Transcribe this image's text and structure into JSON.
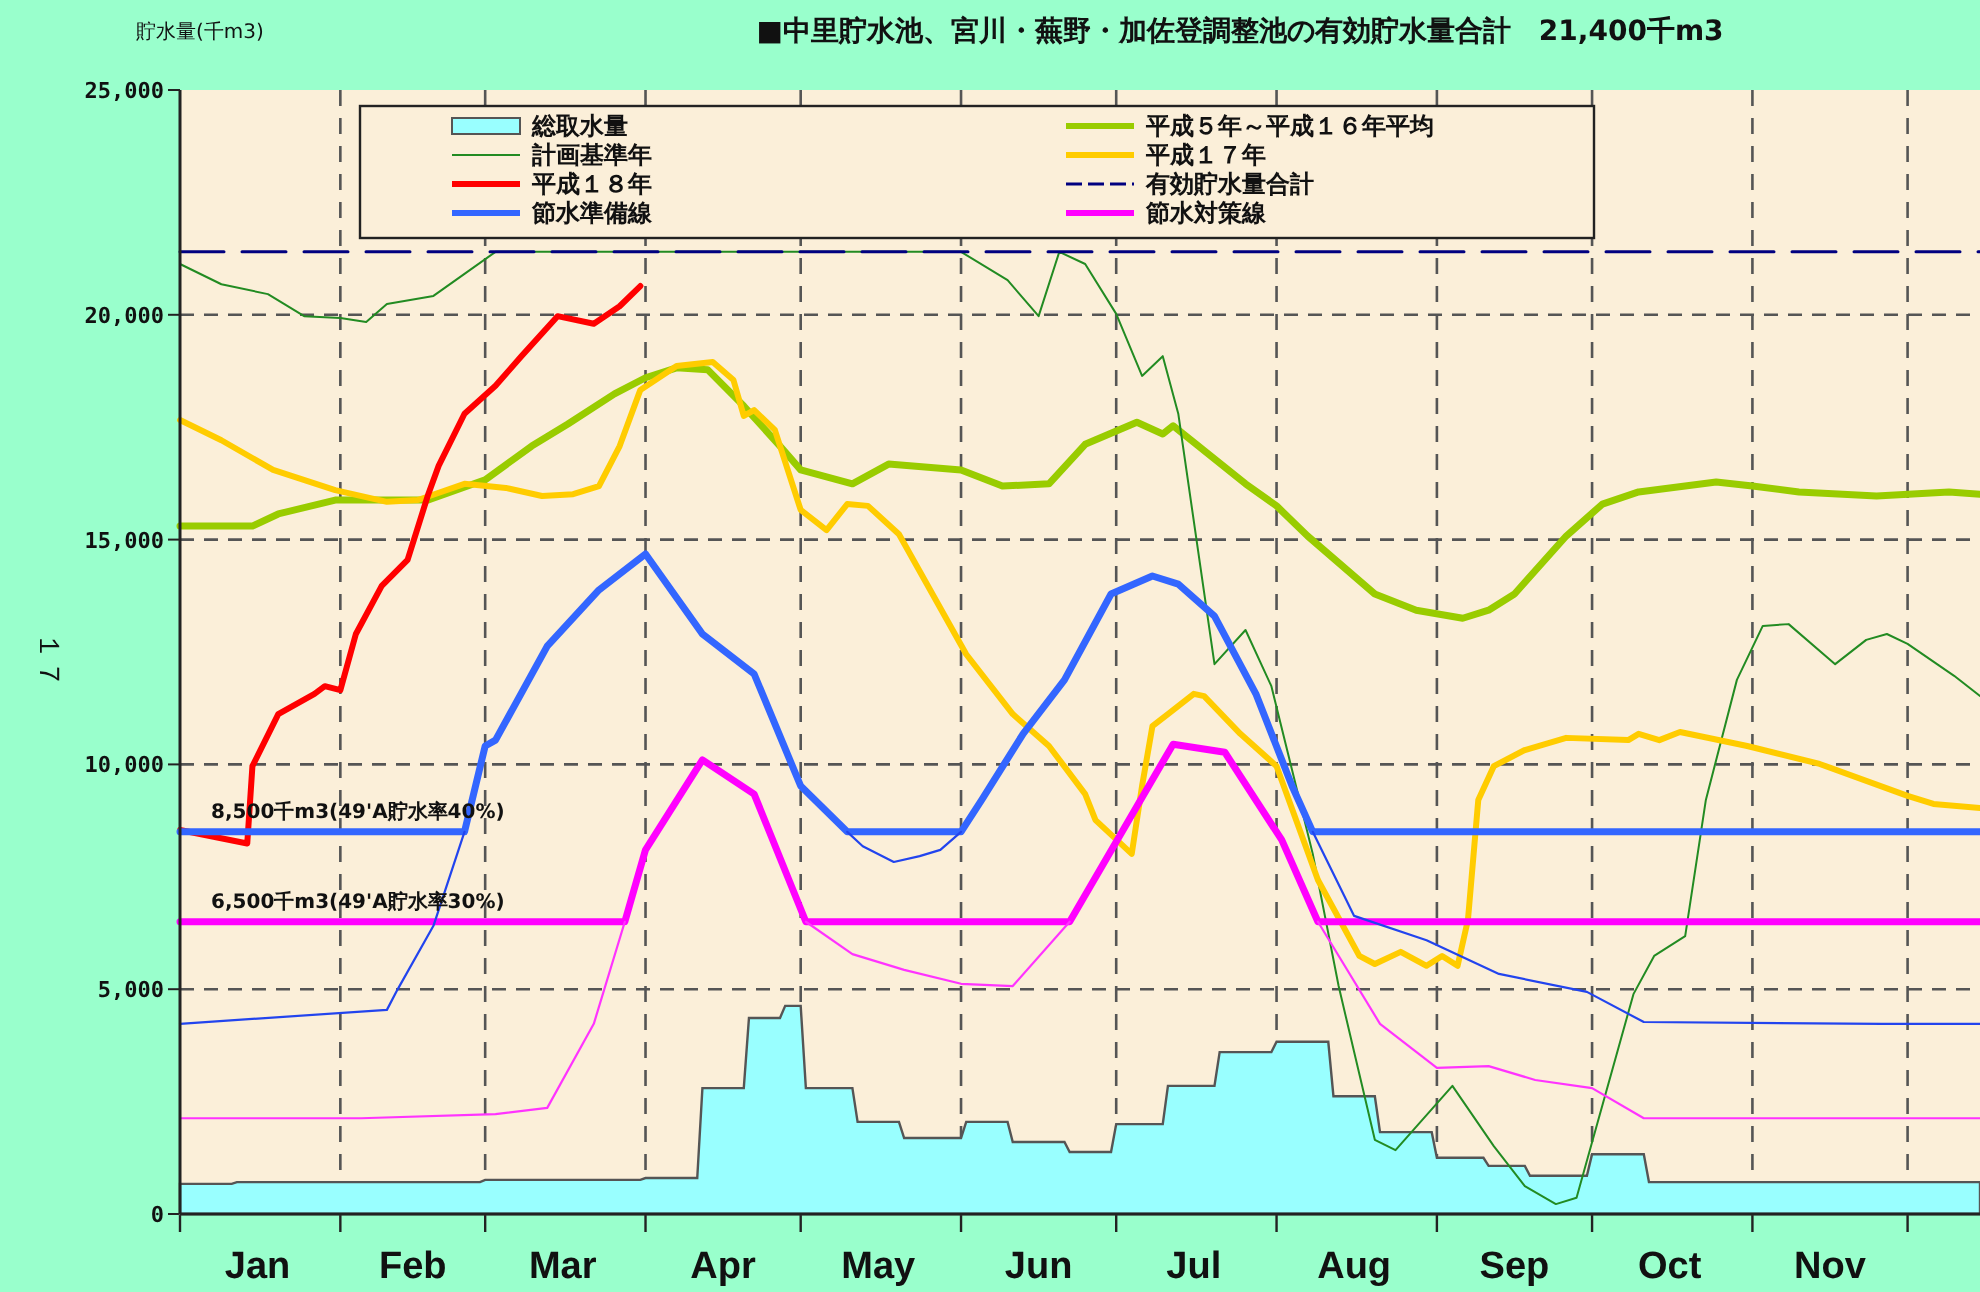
{
  "chart_data": {
    "type": "line",
    "title": "■中里貯水池、宮川・蕪野・加佐登調整池の有効貯水量合計　21,400千m3",
    "ylabel": "貯水量(千m3)",
    "xlim": [
      "--01-01",
      "--12-15"
    ],
    "ylim": [
      0,
      25000
    ],
    "xticks": [
      {
        "value": "--01-01",
        "label": null
      },
      {
        "value": "--01-16",
        "label": "Jan"
      },
      {
        "value": "--02-01",
        "label": null
      },
      {
        "value": "--02-15",
        "label": "Feb"
      },
      {
        "value": "--03-01",
        "label": null
      },
      {
        "value": "--03-16",
        "label": "Mar"
      },
      {
        "value": "--04-01",
        "label": null
      },
      {
        "value": "--04-16",
        "label": "Apr"
      },
      {
        "value": "--05-01",
        "label": null
      },
      {
        "value": "--05-16",
        "label": "May"
      },
      {
        "value": "--06-01",
        "label": null
      },
      {
        "value": "--06-16",
        "label": "Jun"
      },
      {
        "value": "--07-01",
        "label": null
      },
      {
        "value": "--07-16",
        "label": "Jul"
      },
      {
        "value": "--08-01",
        "label": null
      },
      {
        "value": "--08-16",
        "label": "Aug"
      },
      {
        "value": "--09-01",
        "label": null
      },
      {
        "value": "--09-16",
        "label": "Sep"
      },
      {
        "value": "--10-01",
        "label": null
      },
      {
        "value": "--10-16",
        "label": "Oct"
      },
      {
        "value": "--11-01",
        "label": null
      },
      {
        "value": "--11-16",
        "label": "Nov"
      },
      {
        "value": "--12-01",
        "label": null
      }
    ],
    "yticks": [
      {
        "value": 0,
        "label": "0"
      },
      {
        "value": 5000,
        "label": "5,000"
      },
      {
        "value": 10000,
        "label": "10,000"
      },
      {
        "value": 15000,
        "label": "15,000"
      },
      {
        "value": 20000,
        "label": "20,000"
      },
      {
        "value": 25000,
        "label": "25,000"
      }
    ],
    "grid": true,
    "legend": "top",
    "series": [
      {
        "name": "総取水量",
        "type": "area",
        "color": "#99ffff",
        "x": [
          "--01-01",
          "--01-11",
          "--01-12",
          "--02-28",
          "--03-01",
          "--03-31",
          "--04-01",
          "--04-11",
          "--04-12",
          "--04-20",
          "--04-21",
          "--04-27",
          "--04-28",
          "--05-01",
          "--05-02",
          "--05-11",
          "--05-12",
          "--05-20",
          "--05-21",
          "--06-01",
          "--06-02",
          "--06-10",
          "--06-11",
          "--06-21",
          "--06-22",
          "--06-30",
          "--07-01",
          "--07-10",
          "--07-11",
          "--07-20",
          "--07-21",
          "--07-31",
          "--08-01",
          "--08-11",
          "--08-12",
          "--08-20",
          "--08-21",
          "--08-31",
          "--09-01",
          "--09-10",
          "--09-11",
          "--09-18",
          "--09-19",
          "--09-30",
          "--10-01",
          "--10-11",
          "--10-12",
          "--12-15"
        ],
        "values": [
          670,
          670,
          710,
          710,
          760,
          760,
          800,
          800,
          2800,
          2800,
          4360,
          4360,
          4630,
          4630,
          2800,
          2800,
          2050,
          2050,
          1690,
          1690,
          2050,
          2050,
          1600,
          1600,
          1380,
          1380,
          2000,
          2000,
          2850,
          2850,
          3600,
          3600,
          3830,
          3830,
          2620,
          2620,
          1820,
          1820,
          1250,
          1250,
          1070,
          1070,
          850,
          850,
          1330,
          1330,
          710,
          710
        ]
      },
      {
        "name": "平成５年～平成１６年平均",
        "color": "#99cc00",
        "x": [
          "--01-01",
          "--01-15",
          "--01-20",
          "--01-31",
          "--02-18",
          "--03-01",
          "--03-10",
          "--03-17",
          "--03-26",
          "--04-01",
          "--04-07",
          "--04-13",
          "--04-20",
          "--04-27",
          "--05-01",
          "--05-11",
          "--05-18",
          "--06-01",
          "--06-09",
          "--06-18",
          "--06-25",
          "--07-05",
          "--07-10",
          "--07-12",
          "--07-26",
          "--08-01",
          "--08-07",
          "--08-20",
          "--08-28",
          "--09-06",
          "--09-11",
          "--09-16",
          "--09-26",
          "--10-03",
          "--10-10",
          "--10-25",
          "--11-01",
          "--11-10",
          "--11-25",
          "--12-09",
          "--12-15"
        ],
        "values": [
          15300,
          15300,
          15570,
          15880,
          15880,
          16330,
          17080,
          17570,
          18240,
          18600,
          18820,
          18780,
          17970,
          17080,
          16550,
          16240,
          16680,
          16550,
          16190,
          16240,
          17120,
          17610,
          17350,
          17530,
          16240,
          15750,
          15080,
          13790,
          13430,
          13250,
          13430,
          13790,
          15080,
          15790,
          16060,
          16280,
          16190,
          16060,
          15970,
          16060,
          16010
        ]
      },
      {
        "name": "計画基準年",
        "color": "#228b22",
        "x": [
          "--01-01",
          "--01-09",
          "--01-18",
          "--01-25",
          "--02-01",
          "--02-06",
          "--02-10",
          "--02-19",
          "--02-25",
          "--03-03",
          "--06-01",
          "--06-10",
          "--06-16",
          "--06-20",
          "--06-25",
          "--07-01",
          "--07-06",
          "--07-10",
          "--07-13",
          "--07-20",
          "--07-26",
          "--07-31",
          "--08-08",
          "--08-13",
          "--08-20",
          "--08-24",
          "--09-04",
          "--09-12",
          "--09-18",
          "--09-24",
          "--09-28",
          "--10-09",
          "--10-13",
          "--10-19",
          "--10-23",
          "--10-29",
          "--11-03",
          "--11-08",
          "--11-17",
          "--11-23",
          "--11-27",
          "--12-01",
          "--12-10",
          "--12-15"
        ],
        "values": [
          21130,
          20680,
          20460,
          19970,
          19930,
          19840,
          20240,
          20420,
          20910,
          21400,
          21400,
          20770,
          19970,
          21400,
          21130,
          20020,
          18640,
          19080,
          17800,
          12230,
          12990,
          11740,
          8010,
          5070,
          1650,
          1420,
          2850,
          1510,
          620,
          220,
          360,
          4890,
          5740,
          6180,
          9210,
          11880,
          13080,
          13120,
          12230,
          12770,
          12900,
          12680,
          11970,
          11520
        ]
      },
      {
        "name": "平成１７年",
        "color": "#ffcc00",
        "x": [
          "--01-01",
          "--01-09",
          "--01-19",
          "--01-31",
          "--02-10",
          "--02-16",
          "--02-25",
          "--03-05",
          "--03-12",
          "--03-18",
          "--03-23",
          "--03-27",
          "--03-31",
          "--04-07",
          "--04-14",
          "--04-18",
          "--04-20",
          "--04-22",
          "--04-26",
          "--05-01",
          "--05-06",
          "--05-10",
          "--05-14",
          "--05-20",
          "--06-02",
          "--06-11",
          "--06-18",
          "--06-25",
          "--06-27",
          "--07-04",
          "--07-06",
          "--07-08",
          "--07-11",
          "--07-16",
          "--07-18",
          "--07-25",
          "--08-01",
          "--08-09",
          "--08-17",
          "--08-20",
          "--08-25",
          "--08-30",
          "--09-02",
          "--09-05",
          "--09-07",
          "--09-09",
          "--09-12",
          "--09-18",
          "--09-26",
          "--10-08",
          "--10-10",
          "--10-14",
          "--10-18",
          "--10-31",
          "--11-14",
          "--12-01",
          "--12-06",
          "--12-15"
        ],
        "values": [
          17660,
          17210,
          16550,
          16100,
          15840,
          15880,
          16240,
          16150,
          15970,
          16010,
          16190,
          17080,
          18330,
          18860,
          18950,
          18550,
          17750,
          17880,
          17440,
          15660,
          15210,
          15790,
          15750,
          15120,
          12450,
          11120,
          10410,
          9340,
          8760,
          8010,
          9520,
          10850,
          11120,
          11570,
          11520,
          10680,
          9960,
          7430,
          5740,
          5560,
          5830,
          5520,
          5740,
          5520,
          6540,
          9210,
          9960,
          10320,
          10590,
          10540,
          10680,
          10540,
          10720,
          10410,
          10010,
          9300,
          9120,
          9030
        ]
      },
      {
        "name": "平成１８年",
        "color": "#ff0000",
        "x": [
          "--01-01",
          "--01-14",
          "--01-15",
          "--01-20",
          "--01-27",
          "--01-29",
          "--02-01",
          "--02-04",
          "--02-09",
          "--02-14",
          "--02-18",
          "--02-20",
          "--02-25",
          "--03-03",
          "--03-08",
          "--03-15",
          "--03-22",
          "--03-27",
          "--03-31"
        ],
        "values": [
          8540,
          8240,
          9960,
          11120,
          11570,
          11740,
          11650,
          12900,
          13970,
          14550,
          16010,
          16640,
          17800,
          18420,
          19080,
          19970,
          19800,
          20190,
          20640
        ]
      },
      {
        "name": "有効貯水量合計",
        "color": "#000080",
        "line_style": "dashed",
        "x": [
          "--01-01",
          "--12-15"
        ],
        "values": [
          21400,
          21400
        ]
      },
      {
        "name": "節水準備線",
        "color": "#3366ff",
        "x": [
          "--01-01",
          "--02-25",
          "--03-01",
          "--03-03",
          "--03-13",
          "--03-23",
          "--04-01",
          "--04-12",
          "--04-22",
          "--05-01",
          "--05-10",
          "--06-01",
          "--06-05",
          "--06-13",
          "--06-21",
          "--06-30",
          "--07-08",
          "--07-13",
          "--07-20",
          "--07-28",
          "--08-04",
          "--08-08",
          "--12-15"
        ],
        "values": [
          8500,
          8500,
          10410,
          10540,
          12630,
          13880,
          14680,
          12900,
          12010,
          9520,
          8500,
          8500,
          9210,
          10680,
          11880,
          13790,
          14190,
          14010,
          13300,
          11570,
          9520,
          8500,
          8500
        ]
      },
      {
        "name": "節水対策線",
        "color": "#ff00ff",
        "x": [
          "--01-01",
          "--03-28",
          "--04-01",
          "--04-12",
          "--04-22",
          "--05-02",
          "--06-22",
          "--07-12",
          "--07-22",
          "--08-02",
          "--08-09",
          "--12-15"
        ],
        "values": [
          6500,
          6500,
          8100,
          10100,
          9340,
          6500,
          6500,
          10450,
          10270,
          8320,
          6500,
          6500
        ]
      },
      {
        "color": "#2244ee",
        "x": [
          "--01-01",
          "--02-10",
          "--02-12",
          "--02-19",
          "--02-25"
        ],
        "values": [
          4230,
          4540,
          4980,
          6410,
          8500
        ]
      },
      {
        "color": "#2244ee",
        "x": [
          "--05-10",
          "--05-13",
          "--05-19",
          "--05-24",
          "--05-28",
          "--06-01"
        ],
        "values": [
          8500,
          8180,
          7830,
          7960,
          8100,
          8500
        ]
      },
      {
        "color": "#2244ee",
        "x": [
          "--08-08",
          "--08-16",
          "--08-30",
          "--09-13",
          "--09-30",
          "--10-11",
          "--11-26",
          "--12-15"
        ],
        "values": [
          8500,
          6630,
          6090,
          5340,
          4940,
          4270,
          4230,
          4230
        ]
      },
      {
        "color": "#ff33ff",
        "x": [
          "--01-01",
          "--02-05",
          "--03-03",
          "--03-13",
          "--03-22",
          "--03-28"
        ],
        "values": [
          2130,
          2130,
          2220,
          2360,
          4230,
          6500
        ]
      },
      {
        "color": "#ff33ff",
        "x": [
          "--05-02",
          "--05-11",
          "--05-21",
          "--06-01",
          "--06-11",
          "--06-22"
        ],
        "values": [
          6500,
          5780,
          5430,
          5120,
          5070,
          6500
        ]
      },
      {
        "color": "#ff33ff",
        "x": [
          "--08-09",
          "--08-21",
          "--09-01",
          "--09-11",
          "--09-20",
          "--10-01",
          "--10-11",
          "--12-15"
        ],
        "values": [
          6500,
          4230,
          3250,
          3290,
          2980,
          2800,
          2130,
          2130
        ]
      }
    ],
    "annotations": [
      {
        "text": "8,500千m3(49'A貯水率40%)",
        "x": "--01-07",
        "y": 8500
      },
      {
        "text": "6,500千m3(49'A貯水率30%)",
        "x": "--01-07",
        "y": 6500
      },
      "１７"
    ]
  }
}
